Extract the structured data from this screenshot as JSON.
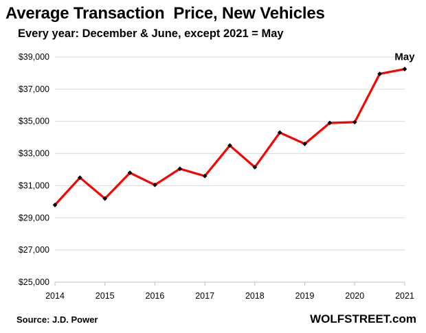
{
  "chart_data": {
    "type": "line",
    "title": "Average Transaction  Price, New Vehicles",
    "subtitle": "Every year: December & June, except 2021 = May",
    "xlabel": "",
    "ylabel": "",
    "x_ticks": [
      "2014",
      "2015",
      "2016",
      "2017",
      "2018",
      "2019",
      "2020",
      "2021"
    ],
    "xlim": [
      2014,
      2021
    ],
    "y_ticks": [
      "$25,000",
      "$27,000",
      "$29,000",
      "$31,000",
      "$33,000",
      "$35,000",
      "$37,000",
      "$39,000"
    ],
    "ylim": [
      25000,
      39000
    ],
    "grid": "horizontal",
    "legend": "none",
    "series": [
      {
        "color": "#ff0000",
        "marker_color": "#000000",
        "x": [
          2014.0,
          2014.5,
          2015.0,
          2015.5,
          2016.0,
          2016.5,
          2017.0,
          2017.5,
          2018.0,
          2018.5,
          2019.0,
          2019.5,
          2020.0,
          2020.5,
          2021.0
        ],
        "values": [
          29800,
          31500,
          30200,
          31800,
          31050,
          32050,
          31600,
          33500,
          32150,
          34300,
          33600,
          34900,
          34950,
          37950,
          38250
        ]
      }
    ],
    "annotations": [
      {
        "text": "May",
        "x": 2021.0,
        "y": 38250
      }
    ]
  },
  "footer": {
    "source": "Source: J.D. Power",
    "brand": "WOLFSTREET.com"
  }
}
